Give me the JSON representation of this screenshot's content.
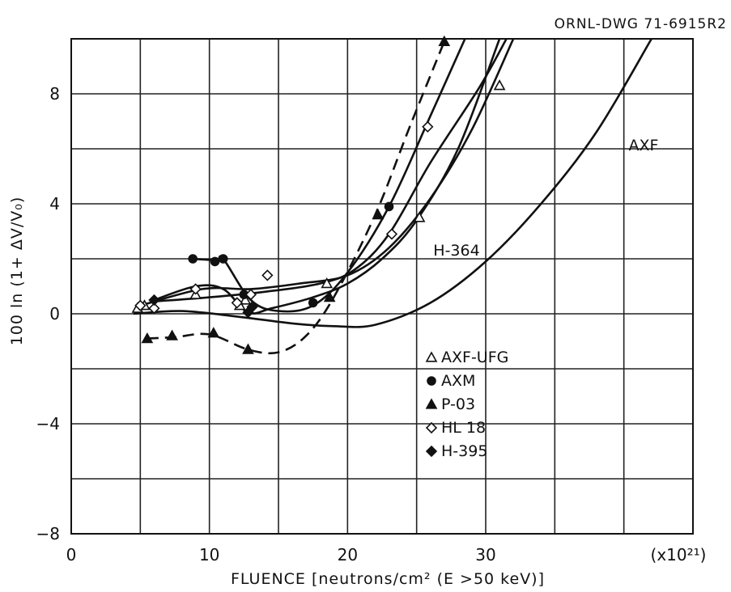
{
  "chart_data": {
    "type": "scatter",
    "drawing_number": "ORNL-DWG 71-6915R2",
    "ylabel": "100 ln (1+ ΔV/V₀)",
    "xlabel": "FLUENCE [neutrons/cm² (E >50 keV)]",
    "x_multiplier": "(x10²¹)",
    "xlim": [
      0,
      45
    ],
    "ylim": [
      -8,
      10
    ],
    "x_ticks": [
      "0",
      "10",
      "20",
      "30"
    ],
    "y_ticks": [
      "-8",
      "-4",
      "0",
      "4",
      "8"
    ],
    "grid": true,
    "legend_placement": "lower-center",
    "series": [
      {
        "name": "AXF-UFG",
        "marker": "triangle-open",
        "points": [
          [
            4.8,
            0.2
          ],
          [
            5.3,
            0.3
          ],
          [
            9.0,
            0.7
          ],
          [
            12.2,
            0.3
          ],
          [
            12.6,
            0.5
          ],
          [
            18.5,
            1.1
          ],
          [
            25.2,
            3.5
          ],
          [
            31.0,
            8.3
          ]
        ]
      },
      {
        "name": "AXM",
        "marker": "circle-filled",
        "points": [
          [
            8.8,
            2.0
          ],
          [
            10.4,
            1.9
          ],
          [
            11.0,
            2.0
          ],
          [
            12.5,
            0.7
          ],
          [
            17.5,
            0.4
          ],
          [
            23.0,
            3.9
          ]
        ]
      },
      {
        "name": "P-03",
        "marker": "triangle-filled",
        "points": [
          [
            5.5,
            -0.9
          ],
          [
            7.3,
            -0.8
          ],
          [
            10.3,
            -0.7
          ],
          [
            12.8,
            -1.3
          ],
          [
            18.7,
            0.6
          ],
          [
            22.2,
            3.6
          ],
          [
            27.0,
            9.9
          ]
        ]
      },
      {
        "name": "HL 18",
        "marker": "diamond-open",
        "points": [
          [
            5.0,
            0.3
          ],
          [
            6.0,
            0.2
          ],
          [
            9.0,
            0.9
          ],
          [
            12.0,
            0.4
          ],
          [
            13.0,
            0.7
          ],
          [
            14.2,
            1.4
          ],
          [
            23.2,
            2.9
          ],
          [
            25.8,
            6.8
          ]
        ]
      },
      {
        "name": "H-395",
        "marker": "diamond-filled",
        "points": [
          [
            6.0,
            0.5
          ],
          [
            12.8,
            0.05
          ],
          [
            13.1,
            0.25
          ]
        ]
      }
    ],
    "curve_labels": [
      "AXF",
      "H-364"
    ],
    "curves": [
      {
        "name": "AXF",
        "points": [
          [
            4.5,
            0.0
          ],
          [
            8.0,
            0.1
          ],
          [
            12.0,
            -0.1
          ],
          [
            16.0,
            -0.35
          ],
          [
            19.0,
            -0.45
          ],
          [
            22.0,
            -0.4
          ],
          [
            26.0,
            0.4
          ],
          [
            30.0,
            1.9
          ],
          [
            34.0,
            4.0
          ],
          [
            38.0,
            6.6
          ],
          [
            42.0,
            10.0
          ]
        ]
      },
      {
        "name": "H-364",
        "points": [
          [
            5.0,
            0.3
          ],
          [
            9.5,
            0.9
          ],
          [
            13.0,
            0.9
          ],
          [
            16.5,
            1.1
          ],
          [
            20.0,
            1.4
          ],
          [
            23.0,
            2.4
          ],
          [
            26.0,
            4.2
          ],
          [
            29.0,
            6.7
          ],
          [
            32.0,
            10.0
          ]
        ]
      },
      {
        "name": "AXM",
        "points": [
          [
            8.8,
            2.0
          ],
          [
            10.5,
            1.95
          ],
          [
            11.0,
            2.0
          ],
          [
            13.0,
            0.5
          ],
          [
            15.0,
            0.1
          ],
          [
            17.5,
            0.3
          ],
          [
            20.0,
            1.5
          ],
          [
            23.0,
            3.9
          ],
          [
            26.0,
            7.2
          ],
          [
            28.5,
            10.0
          ]
        ]
      },
      {
        "name": "P-03",
        "points": [
          [
            5.5,
            -0.9
          ],
          [
            7.5,
            -0.85
          ],
          [
            10.0,
            -0.75
          ],
          [
            12.8,
            -1.3
          ],
          [
            15.0,
            -1.4
          ],
          [
            17.0,
            -0.8
          ],
          [
            19.0,
            0.6
          ],
          [
            22.0,
            3.6
          ],
          [
            24.5,
            6.8
          ],
          [
            27.0,
            9.9
          ]
        ]
      },
      {
        "name": "HL 18",
        "points": [
          [
            6.0,
            0.45
          ],
          [
            10.0,
            0.6
          ],
          [
            14.0,
            0.8
          ],
          [
            18.0,
            1.1
          ],
          [
            20.5,
            1.6
          ],
          [
            23.0,
            2.9
          ],
          [
            26.0,
            5.5
          ],
          [
            29.5,
            8.2
          ],
          [
            31.5,
            10.0
          ]
        ]
      },
      {
        "name": "H-395",
        "points": [
          [
            6.0,
            0.5
          ],
          [
            9.0,
            1.0
          ],
          [
            11.0,
            0.9
          ],
          [
            12.8,
            0.05
          ],
          [
            14.5,
            0.2
          ],
          [
            17.5,
            0.6
          ],
          [
            20.0,
            1.1
          ],
          [
            22.5,
            2.0
          ],
          [
            25.0,
            3.4
          ],
          [
            28.0,
            6.0
          ],
          [
            31.0,
            10.0
          ]
        ]
      }
    ]
  }
}
